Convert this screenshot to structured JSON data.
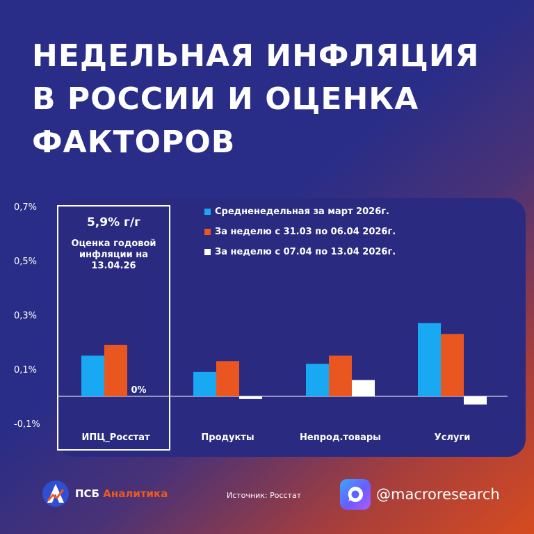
{
  "title_lines": [
    "НЕДЕЛЬНАЯ ИНФЛЯЦИЯ",
    "В РОССИИ И ОЦЕНКА",
    "ФАКТОРОВ"
  ],
  "highlight": {
    "value": "5,9% г/г",
    "label": "Оценка годовой\nинфляции на\n13.04.26"
  },
  "footer": {
    "brand_prefix": "ПСБ",
    "brand_accent": "Аналитика",
    "source": "Источник: Росстат",
    "social_handle": "@macroresearch"
  },
  "colors": {
    "series1": "#19a9f2",
    "series2": "#ea5620",
    "series3": "#ffffff",
    "panel": "#2a2b80",
    "brand_accent": "#f0591e"
  },
  "chart_data": {
    "type": "bar",
    "categories": [
      "ИПЦ_Росстат",
      "Продукты",
      "Непрод.товары",
      "Услуги"
    ],
    "series": [
      {
        "name": "Средненедельная за март 2026г.",
        "values": [
          0.15,
          0.09,
          0.12,
          0.27
        ]
      },
      {
        "name": "За неделю с 31.03 по 06.04 2026г.",
        "values": [
          0.19,
          0.13,
          0.15,
          0.23
        ]
      },
      {
        "name": "За неделю с 07.04 по 13.04 2026г.",
        "values": [
          0.0,
          -0.01,
          0.06,
          -0.03
        ]
      }
    ],
    "y_ticks": [
      "0,7%",
      "0,5%",
      "0,3%",
      "0,1%",
      "-0,1%"
    ],
    "y_tick_values": [
      0.7,
      0.5,
      0.3,
      0.1,
      -0.1
    ],
    "ylim": [
      -0.1,
      0.7
    ],
    "data_labels": [
      {
        "category": 0,
        "series": 2,
        "text": "0%"
      }
    ],
    "legend_position": "top-right",
    "grid": false
  }
}
